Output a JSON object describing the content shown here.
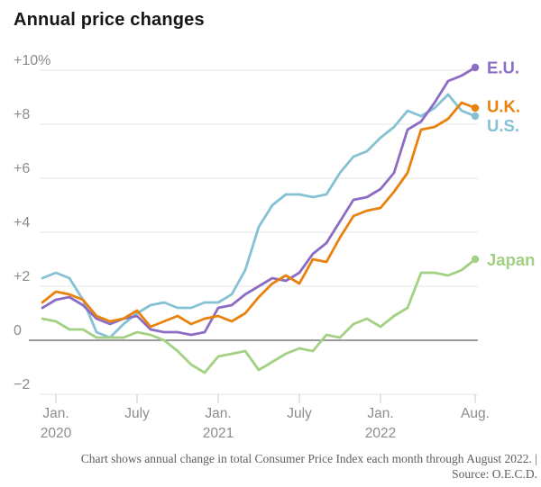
{
  "page": {
    "title": "Annual price changes",
    "footnote": "Chart shows annual change in total Consumer Price Index each month through August 2022. |",
    "source": "Source: O.E.C.D."
  },
  "colors": {
    "grid": "#e6e6e6",
    "zero_axis": "#7a7a7a",
    "tick": "#c9c9c9",
    "axis_text": "#8c8c8c",
    "title_text": "#161616",
    "footnote_text": "#5e5e5e",
    "background": "#ffffff"
  },
  "chart_data": {
    "type": "line",
    "title": "Annual price changes",
    "xlabel": "",
    "ylabel": "",
    "ylim": [
      -2.6,
      10.8
    ],
    "grid": true,
    "legend_position": "end-of-line-labels",
    "x": [
      "Dec. 2019",
      "Jan. 2020",
      "Feb. 2020",
      "Mar. 2020",
      "Apr. 2020",
      "May 2020",
      "June 2020",
      "July 2020",
      "Aug. 2020",
      "Sept. 2020",
      "Oct. 2020",
      "Nov. 2020",
      "Dec. 2020",
      "Jan. 2021",
      "Feb. 2021",
      "Mar. 2021",
      "Apr. 2021",
      "May 2021",
      "June 2021",
      "July 2021",
      "Aug. 2021",
      "Sept. 2021",
      "Oct. 2021",
      "Nov. 2021",
      "Dec. 2021",
      "Jan. 2022",
      "Feb. 2022",
      "Mar. 2022",
      "Apr. 2022",
      "May 2022",
      "June 2022",
      "July 2022",
      "Aug. 2022"
    ],
    "series": [
      {
        "name": "E.U.",
        "color": "#8d6cc4",
        "values": [
          1.2,
          1.5,
          1.6,
          1.3,
          0.8,
          0.6,
          0.8,
          0.9,
          0.4,
          0.3,
          0.3,
          0.2,
          0.3,
          1.2,
          1.3,
          1.7,
          2.0,
          2.3,
          2.2,
          2.5,
          3.2,
          3.6,
          4.4,
          5.2,
          5.3,
          5.6,
          6.2,
          7.8,
          8.1,
          8.8,
          9.6,
          9.8,
          10.1
        ]
      },
      {
        "name": "U.K.",
        "color": "#e8820c",
        "values": [
          1.4,
          1.8,
          1.7,
          1.5,
          0.9,
          0.7,
          0.8,
          1.1,
          0.5,
          0.7,
          0.9,
          0.6,
          0.8,
          0.9,
          0.7,
          1.0,
          1.6,
          2.1,
          2.4,
          2.1,
          3.0,
          2.9,
          3.8,
          4.6,
          4.8,
          4.9,
          5.5,
          6.2,
          7.8,
          7.9,
          8.2,
          8.8,
          8.6
        ]
      },
      {
        "name": "U.S.",
        "color": "#85c1d4",
        "values": [
          2.3,
          2.5,
          2.3,
          1.5,
          0.3,
          0.1,
          0.6,
          1.0,
          1.3,
          1.4,
          1.2,
          1.2,
          1.4,
          1.4,
          1.7,
          2.6,
          4.2,
          5.0,
          5.4,
          5.4,
          5.3,
          5.4,
          6.2,
          6.8,
          7.0,
          7.5,
          7.9,
          8.5,
          8.3,
          8.6,
          9.1,
          8.5,
          8.3
        ]
      },
      {
        "name": "Japan",
        "color": "#a2d183",
        "values": [
          0.8,
          0.7,
          0.4,
          0.4,
          0.1,
          0.1,
          0.1,
          0.3,
          0.2,
          0.0,
          -0.4,
          -0.9,
          -1.2,
          -0.6,
          -0.5,
          -0.4,
          -1.1,
          -0.8,
          -0.5,
          -0.3,
          -0.4,
          0.2,
          0.1,
          0.6,
          0.8,
          0.5,
          0.9,
          1.2,
          2.5,
          2.5,
          2.4,
          2.6,
          3.0
        ]
      }
    ],
    "y_ticks": [
      {
        "value": 10,
        "label": "+10%"
      },
      {
        "value": 8,
        "label": "+8"
      },
      {
        "value": 6,
        "label": "+6"
      },
      {
        "value": 4,
        "label": "+4"
      },
      {
        "value": 2,
        "label": "+2"
      },
      {
        "value": 0,
        "label": "0"
      },
      {
        "value": -2,
        "label": "−2"
      }
    ],
    "x_ticks": [
      {
        "month_index": 1,
        "label": "Jan.",
        "sublabel": "2020"
      },
      {
        "month_index": 7,
        "label": "July",
        "sublabel": ""
      },
      {
        "month_index": 13,
        "label": "Jan.",
        "sublabel": "2021"
      },
      {
        "month_index": 19,
        "label": "July",
        "sublabel": ""
      },
      {
        "month_index": 25,
        "label": "Jan.",
        "sublabel": "2022"
      },
      {
        "month_index": 32,
        "label": "Aug.",
        "sublabel": ""
      }
    ]
  }
}
